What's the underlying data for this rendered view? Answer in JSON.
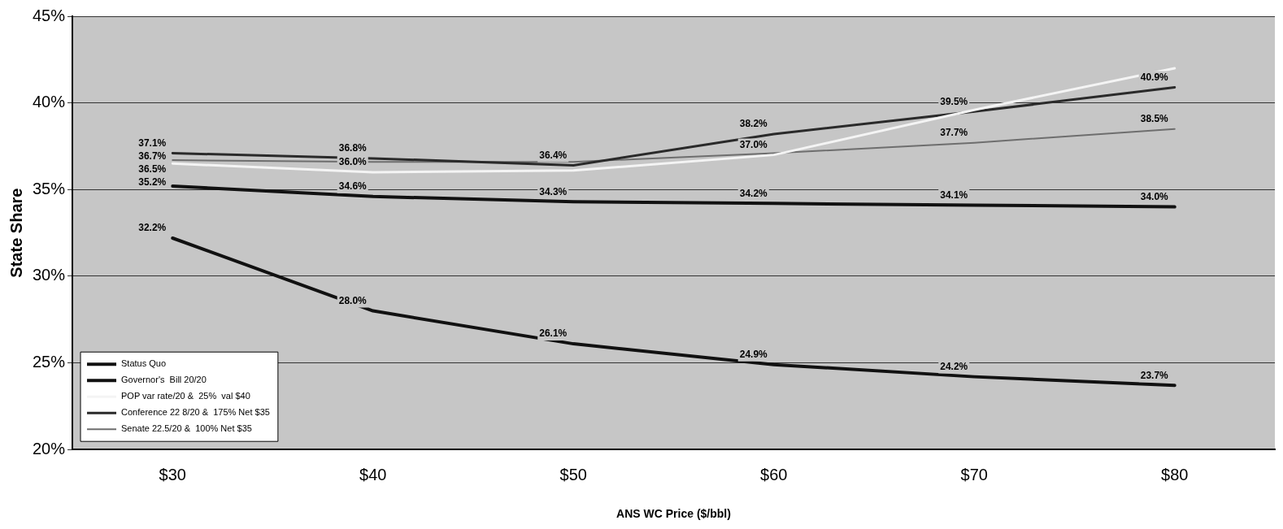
{
  "chart_data": {
    "type": "line",
    "xlabel": "ANS WC Price ($/bbl)",
    "ylabel": "State Share",
    "categories": [
      "$30",
      "$40",
      "$50",
      "$60",
      "$70",
      "$80"
    ],
    "series": [
      {
        "name": "Status Quo",
        "color": "#111111",
        "values": [
          32.2,
          28.0,
          26.1,
          24.9,
          24.2,
          23.7
        ],
        "value_labels": [
          "32.2%",
          "28.0%",
          "26.1%",
          "24.9%",
          "24.2%",
          "23.7%"
        ]
      },
      {
        "name": "Governor's  Bill 20/20",
        "color": "#111111",
        "values": [
          35.2,
          34.6,
          34.3,
          34.2,
          34.1,
          34.0
        ],
        "value_labels": [
          "35.2%",
          "34.6%",
          "34.3%",
          "34.2%",
          "34.1%",
          "34.0%"
        ]
      },
      {
        "name": "POP var rate/20 &  25%  val $40",
        "color": "#f4f4f4",
        "values": [
          36.5,
          36.0,
          36.1,
          37.0,
          39.6,
          42.0
        ],
        "value_labels": [
          "36.5%",
          "36.0%",
          null,
          "37.0%",
          null,
          null
        ]
      },
      {
        "name": "Conference 22 8/20 &  175% Net $35",
        "color": "#2a2a2a",
        "values": [
          37.1,
          36.8,
          36.4,
          38.2,
          39.5,
          40.9
        ],
        "value_labels": [
          "37.1%",
          "36.8%",
          "36.4%",
          "38.2%",
          "39.5%",
          "40.9%"
        ]
      },
      {
        "name": "Senate 22.5/20 &  100% Net $35",
        "color": "#6e6e6e",
        "values": [
          36.7,
          36.6,
          36.6,
          37.1,
          37.7,
          38.5
        ],
        "value_labels": [
          "36.7%",
          null,
          null,
          null,
          "37.7%",
          "38.5%"
        ]
      }
    ],
    "ylim": [
      20,
      45
    ],
    "yticks": [
      {
        "value": 20,
        "label": "20%"
      },
      {
        "value": 25,
        "label": "25%"
      },
      {
        "value": 30,
        "label": "30%"
      },
      {
        "value": 35,
        "label": "35%"
      },
      {
        "value": 40,
        "label": "40%"
      },
      {
        "value": 45,
        "label": "45%"
      }
    ],
    "grid": "y",
    "legend": "bottom left",
    "marker": "none",
    "line_style": "solid"
  }
}
